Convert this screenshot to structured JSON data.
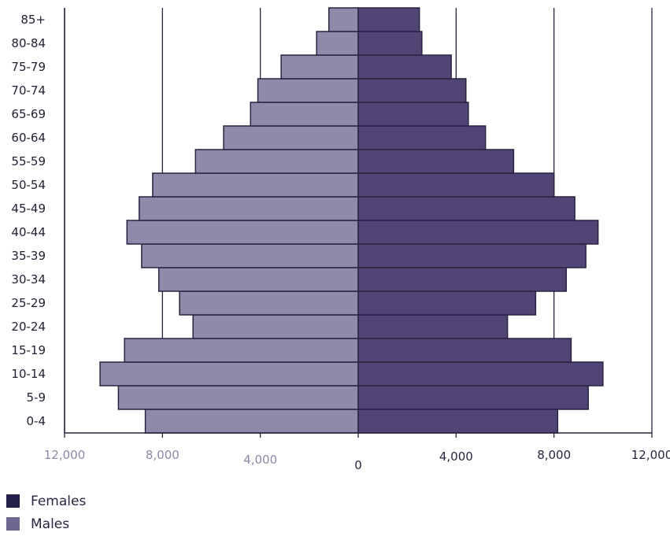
{
  "chart_data": {
    "type": "bar",
    "orientation": "horizontal-population-pyramid",
    "categories": [
      "0-4",
      "5-9",
      "10-14",
      "15-19",
      "20-24",
      "25-29",
      "30-34",
      "35-39",
      "40-44",
      "45-49",
      "50-54",
      "55-59",
      "60-64",
      "65-69",
      "70-74",
      "75-79",
      "80-84",
      "85+"
    ],
    "series": [
      {
        "name": "Females",
        "color": "#514576",
        "values": [
          8150,
          9400,
          10000,
          8700,
          6100,
          7250,
          8500,
          9300,
          9800,
          8850,
          8000,
          6350,
          5200,
          4500,
          4400,
          3800,
          2600,
          2500
        ]
      },
      {
        "name": "Males",
        "color": "#8f89aa",
        "values": [
          8700,
          9800,
          10550,
          9550,
          6750,
          7300,
          8150,
          8850,
          9450,
          8950,
          8400,
          6650,
          5500,
          4400,
          4100,
          3150,
          1700,
          1200
        ]
      }
    ],
    "xlim": [
      -12000,
      12000
    ],
    "x_ticks": [
      {
        "value": -12000,
        "label": "12,000"
      },
      {
        "value": -8000,
        "label": "8,000"
      },
      {
        "value": -4000,
        "label": "4,000"
      },
      {
        "value": 0,
        "label": "0"
      },
      {
        "value": 4000,
        "label": "4,000"
      },
      {
        "value": 8000,
        "label": "8,000"
      },
      {
        "value": 12000,
        "label": "12,000"
      }
    ],
    "tick_colors": {
      "left": "#8a88a8",
      "right": "#2a2440"
    },
    "gridlines": true,
    "legend_position": "bottom-left"
  },
  "legend": {
    "females_label": "Females",
    "males_label": "Males",
    "females_color": "#22204a",
    "males_color": "#6d6890"
  }
}
